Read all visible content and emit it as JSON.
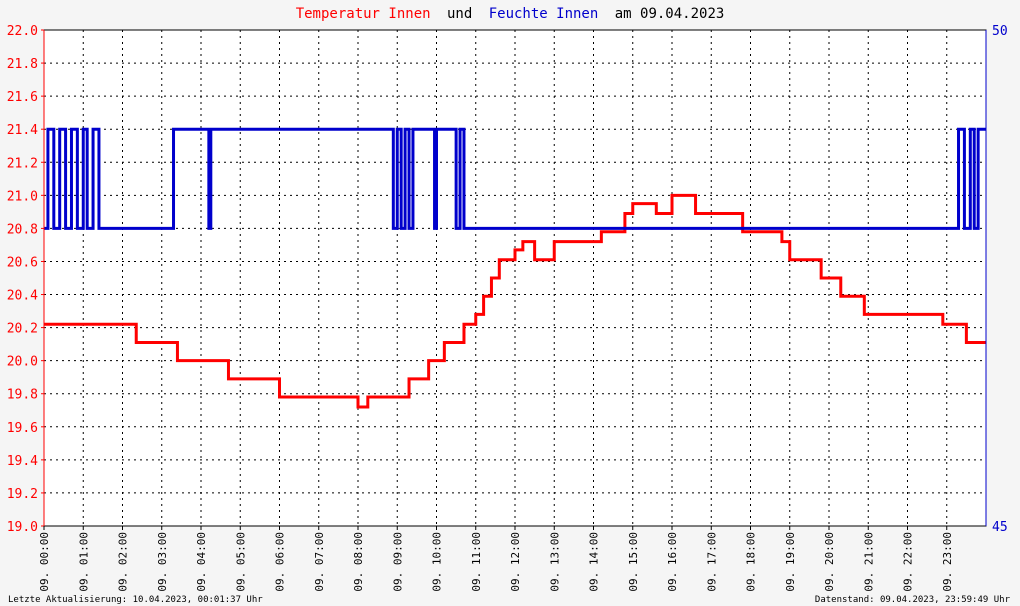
{
  "title": {
    "part1": "Temperatur Innen",
    "part2": "und",
    "part3": "Feuchte Innen",
    "part4": "am 09.04.2023"
  },
  "footer": {
    "left": "Letzte Aktualisierung: 10.04.2023, 00:01:37 Uhr",
    "right": "Datenstand: 09.04.2023, 23:59:49 Uhr"
  },
  "colors": {
    "temperature": "#ff0000",
    "humidity": "#0000cc",
    "grid": "#000000",
    "plot_bg": "#ffffff",
    "page_bg": "#f5f5f5"
  },
  "chart_data": {
    "type": "line",
    "title": "Temperatur Innen und Feuchte Innen am 09.04.2023",
    "xlabel": "",
    "ylabel": "",
    "xlim": [
      0,
      24
    ],
    "ylim": [
      19.0,
      22.0
    ],
    "y2lim": [
      45,
      50
    ],
    "grid": true,
    "legend": "none",
    "y_ticks": [
      "19.0",
      "19.2",
      "19.4",
      "19.6",
      "19.8",
      "20.0",
      "20.2",
      "20.4",
      "20.6",
      "20.8",
      "21.0",
      "21.2",
      "21.4",
      "21.6",
      "21.8",
      "22.0"
    ],
    "y2_ticks": [
      "45",
      "50"
    ],
    "x_ticks": [
      "09. 00:00",
      "09. 01:00",
      "09. 02:00",
      "09. 03:00",
      "09. 04:00",
      "09. 05:00",
      "09. 06:00",
      "09. 07:00",
      "09. 08:00",
      "09. 09:00",
      "09. 10:00",
      "09. 11:00",
      "09. 12:00",
      "09. 13:00",
      "09. 14:00",
      "09. 15:00",
      "09. 16:00",
      "09. 17:00",
      "09. 18:00",
      "09. 19:00",
      "09. 20:00",
      "09. 21:00",
      "09. 22:00",
      "09. 23:00"
    ],
    "series": [
      {
        "name": "Temperatur Innen",
        "axis": "left",
        "x": [
          0.0,
          2.35,
          2.35,
          2.5,
          2.5,
          3.4,
          3.4,
          3.6,
          3.6,
          4.7,
          4.7,
          5.4,
          5.4,
          6.0,
          6.0,
          8.0,
          8.0,
          8.25,
          8.25,
          8.6,
          8.6,
          9.3,
          9.3,
          9.8,
          9.8,
          10.2,
          10.2,
          10.7,
          10.7,
          11.0,
          11.0,
          11.2,
          11.2,
          11.4,
          11.4,
          11.6,
          11.6,
          12.0,
          12.0,
          12.2,
          12.2,
          12.5,
          12.5,
          13.0,
          13.0,
          13.5,
          13.5,
          14.2,
          14.2,
          14.4,
          14.4,
          14.8,
          14.8,
          15.0,
          15.0,
          15.6,
          15.6,
          16.0,
          16.0,
          16.6,
          16.6,
          17.2,
          17.2,
          17.8,
          17.8,
          18.0,
          18.0,
          18.8,
          18.8,
          19.0,
          19.0,
          19.8,
          19.8,
          20.3,
          20.3,
          20.9,
          20.9,
          21.9,
          21.9,
          22.9,
          22.9,
          23.2,
          23.2,
          23.5,
          23.5,
          23.75,
          23.75,
          24.0
        ],
        "values": [
          20.22,
          20.22,
          20.11,
          20.11,
          20.11,
          20.11,
          20.0,
          20.0,
          20.0,
          20.0,
          19.89,
          19.89,
          19.89,
          19.89,
          19.78,
          19.78,
          19.72,
          19.72,
          19.78,
          19.78,
          19.78,
          19.78,
          19.89,
          19.89,
          20.0,
          20.0,
          20.11,
          20.11,
          20.22,
          20.22,
          20.28,
          20.28,
          20.39,
          20.39,
          20.5,
          20.5,
          20.61,
          20.61,
          20.67,
          20.67,
          20.72,
          20.72,
          20.61,
          20.61,
          20.72,
          20.72,
          20.72,
          20.72,
          20.78,
          20.78,
          20.78,
          20.78,
          20.89,
          20.89,
          20.95,
          20.95,
          20.89,
          20.89,
          21.0,
          21.0,
          20.89,
          20.89,
          20.89,
          20.89,
          20.78,
          20.78,
          20.78,
          20.78,
          20.72,
          20.72,
          20.61,
          20.61,
          20.5,
          20.5,
          20.39,
          20.39,
          20.28,
          20.28,
          20.28,
          20.28,
          20.22,
          20.22,
          20.22,
          20.22,
          20.11,
          20.11,
          20.11,
          20.11
        ]
      },
      {
        "name": "Feuchte Innen",
        "axis": "right",
        "x": [
          0.0,
          0.1,
          0.1,
          0.25,
          0.25,
          0.4,
          0.4,
          0.55,
          0.55,
          0.7,
          0.7,
          0.85,
          0.85,
          1.0,
          1.0,
          1.1,
          1.1,
          1.25,
          1.25,
          1.4,
          1.4,
          1.5,
          1.5,
          3.3,
          3.3,
          3.45,
          3.45,
          4.2,
          4.2,
          4.25,
          4.25,
          8.9,
          8.9,
          9.0,
          9.0,
          9.1,
          9.1,
          9.2,
          9.2,
          9.3,
          9.3,
          9.4,
          9.4,
          9.5,
          9.5,
          9.95,
          9.95,
          10.0,
          10.0,
          10.5,
          10.5,
          10.6,
          10.6,
          10.7,
          10.7,
          10.8,
          10.8,
          23.3,
          23.3,
          23.45,
          23.45,
          23.6,
          23.6,
          23.7,
          23.7,
          23.8,
          23.8,
          24.0
        ],
        "values": [
          48.0,
          48.0,
          49.0,
          49.0,
          48.0,
          48.0,
          49.0,
          49.0,
          48.0,
          48.0,
          49.0,
          49.0,
          48.0,
          48.0,
          49.0,
          49.0,
          48.0,
          48.0,
          49.0,
          49.0,
          48.0,
          48.0,
          48.0,
          48.0,
          49.0,
          49.0,
          49.0,
          49.0,
          48.0,
          48.0,
          49.0,
          49.0,
          48.0,
          48.0,
          49.0,
          49.0,
          48.0,
          48.0,
          49.0,
          49.0,
          48.0,
          48.0,
          49.0,
          49.0,
          49.0,
          49.0,
          48.0,
          48.0,
          49.0,
          49.0,
          48.0,
          48.0,
          49.0,
          49.0,
          48.0,
          48.0,
          48.0,
          48.0,
          49.0,
          49.0,
          48.0,
          48.0,
          49.0,
          49.0,
          48.0,
          48.0,
          49.0,
          49.0
        ]
      }
    ]
  }
}
